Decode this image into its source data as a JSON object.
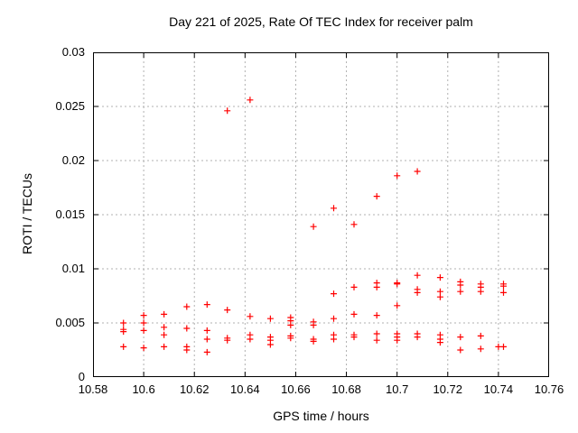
{
  "chart_data": {
    "type": "scatter",
    "title": "Day 221 of 2025, Rate Of TEC Index for receiver palm",
    "xlabel": "GPS time / hours",
    "ylabel": "ROTI / TECUs",
    "xlim": [
      10.58,
      10.76
    ],
    "ylim": [
      0,
      0.03
    ],
    "xticks": {
      "values": [
        10.58,
        10.6,
        10.62,
        10.64,
        10.66,
        10.68,
        10.7,
        10.72,
        10.74,
        10.76
      ],
      "labels": [
        "10.58",
        "10.6",
        "10.62",
        "10.64",
        "10.66",
        "10.68",
        "10.7",
        "10.72",
        "10.74",
        "10.76"
      ]
    },
    "yticks": {
      "values": [
        0,
        0.005,
        0.01,
        0.015,
        0.02,
        0.025,
        0.03
      ],
      "labels": [
        "0",
        "0.005",
        "0.01",
        "0.015",
        "0.02",
        "0.025",
        "0.03"
      ]
    },
    "grid": true,
    "legend": "none",
    "marker": {
      "shape": "plus",
      "color": "#ff0000",
      "size": 7,
      "stroke_width": 1.2
    },
    "colors": {
      "grid": "#b0b0b0",
      "axis": "#000000",
      "background": "#ffffff"
    },
    "points": [
      [
        10.592,
        0.005
      ],
      [
        10.592,
        0.0044
      ],
      [
        10.592,
        0.0042
      ],
      [
        10.592,
        0.0028
      ],
      [
        10.6,
        0.0057
      ],
      [
        10.6,
        0.005
      ],
      [
        10.6,
        0.0043
      ],
      [
        10.6,
        0.0027
      ],
      [
        10.608,
        0.0058
      ],
      [
        10.608,
        0.0046
      ],
      [
        10.608,
        0.0039
      ],
      [
        10.608,
        0.0028
      ],
      [
        10.617,
        0.0065
      ],
      [
        10.617,
        0.0045
      ],
      [
        10.617,
        0.0028
      ],
      [
        10.617,
        0.0025
      ],
      [
        10.625,
        0.0067
      ],
      [
        10.625,
        0.0043
      ],
      [
        10.625,
        0.0035
      ],
      [
        10.625,
        0.0023
      ],
      [
        10.633,
        0.0246
      ],
      [
        10.633,
        0.0062
      ],
      [
        10.633,
        0.0036
      ],
      [
        10.633,
        0.0034
      ],
      [
        10.642,
        0.0256
      ],
      [
        10.642,
        0.0056
      ],
      [
        10.642,
        0.0039
      ],
      [
        10.642,
        0.0035
      ],
      [
        10.65,
        0.0054
      ],
      [
        10.65,
        0.0037
      ],
      [
        10.65,
        0.0034
      ],
      [
        10.65,
        0.003
      ],
      [
        10.658,
        0.0055
      ],
      [
        10.658,
        0.0052
      ],
      [
        10.658,
        0.0048
      ],
      [
        10.658,
        0.0038
      ],
      [
        10.658,
        0.0036
      ],
      [
        10.667,
        0.0139
      ],
      [
        10.667,
        0.0051
      ],
      [
        10.667,
        0.0048
      ],
      [
        10.667,
        0.0035
      ],
      [
        10.667,
        0.0033
      ],
      [
        10.675,
        0.0156
      ],
      [
        10.675,
        0.0077
      ],
      [
        10.675,
        0.0054
      ],
      [
        10.675,
        0.0039
      ],
      [
        10.675,
        0.0035
      ],
      [
        10.683,
        0.0141
      ],
      [
        10.683,
        0.0083
      ],
      [
        10.683,
        0.0058
      ],
      [
        10.683,
        0.0039
      ],
      [
        10.683,
        0.0037
      ],
      [
        10.692,
        0.0167
      ],
      [
        10.692,
        0.0087
      ],
      [
        10.692,
        0.0083
      ],
      [
        10.692,
        0.0057
      ],
      [
        10.692,
        0.004
      ],
      [
        10.692,
        0.0034
      ],
      [
        10.7,
        0.0186
      ],
      [
        10.7,
        0.0087
      ],
      [
        10.7,
        0.0086
      ],
      [
        10.7,
        0.0066
      ],
      [
        10.7,
        0.004
      ],
      [
        10.7,
        0.0037
      ],
      [
        10.7,
        0.0034
      ],
      [
        10.708,
        0.019
      ],
      [
        10.708,
        0.0094
      ],
      [
        10.708,
        0.0081
      ],
      [
        10.708,
        0.0078
      ],
      [
        10.708,
        0.004
      ],
      [
        10.708,
        0.0037
      ],
      [
        10.717,
        0.0092
      ],
      [
        10.717,
        0.0079
      ],
      [
        10.717,
        0.0074
      ],
      [
        10.717,
        0.0039
      ],
      [
        10.717,
        0.0035
      ],
      [
        10.717,
        0.0032
      ],
      [
        10.725,
        0.0088
      ],
      [
        10.725,
        0.0085
      ],
      [
        10.725,
        0.0079
      ],
      [
        10.725,
        0.0037
      ],
      [
        10.725,
        0.0025
      ],
      [
        10.733,
        0.0086
      ],
      [
        10.733,
        0.0083
      ],
      [
        10.733,
        0.0079
      ],
      [
        10.733,
        0.0038
      ],
      [
        10.733,
        0.0026
      ],
      [
        10.74,
        0.0028
      ],
      [
        10.742,
        0.0086
      ],
      [
        10.742,
        0.0084
      ],
      [
        10.742,
        0.0078
      ],
      [
        10.742,
        0.0028
      ]
    ]
  }
}
